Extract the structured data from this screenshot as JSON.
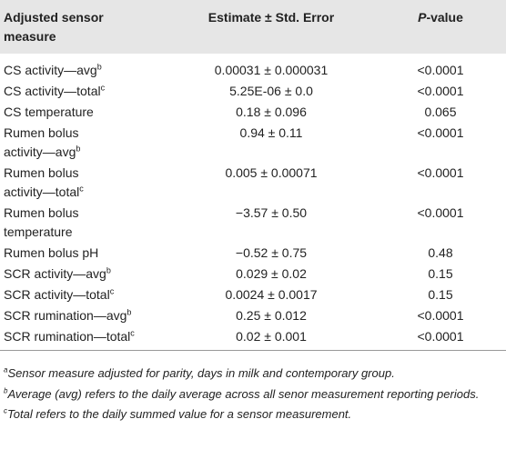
{
  "header": {
    "measure": [
      "Adjusted sensor",
      "measure"
    ],
    "estimate": "Estimate ± Std. Error",
    "p_value": [
      "P",
      "-value"
    ]
  },
  "table": {
    "rows": [
      {
        "measure": [
          "CS activity—avg"
        ],
        "sup": "b",
        "estimate": "0.00031 ± 0.000031",
        "p": "<0.0001"
      },
      {
        "measure": [
          "CS activity—total"
        ],
        "sup": "c",
        "estimate": "5.25E-06 ± 0.0",
        "p": "<0.0001"
      },
      {
        "measure": [
          "CS temperature"
        ],
        "estimate": "0.18 ± 0.096",
        "p": "0.065"
      },
      {
        "measure": [
          "Rumen bolus",
          "activity—avg"
        ],
        "sup": "b",
        "estimate": "0.94 ± 0.11",
        "p": "<0.0001"
      },
      {
        "measure": [
          "Rumen bolus",
          "activity—total"
        ],
        "sup": "c",
        "estimate": "0.005 ± 0.00071",
        "p": "<0.0001"
      },
      {
        "measure": [
          "Rumen bolus",
          "temperature"
        ],
        "estimate": "−3.57 ± 0.50",
        "p": "<0.0001"
      },
      {
        "measure": [
          "Rumen bolus pH"
        ],
        "estimate": "−0.52 ± 0.75",
        "p": "0.48"
      },
      {
        "measure": [
          "SCR activity—avg"
        ],
        "sup": "b",
        "estimate": "0.029 ± 0.02",
        "p": "0.15"
      },
      {
        "measure": [
          "SCR activity—total"
        ],
        "sup": "c",
        "estimate": "0.0024 ± 0.0017",
        "p": "0.15"
      },
      {
        "measure": [
          "SCR rumination—avg"
        ],
        "sup": "b",
        "estimate": "0.25 ± 0.012",
        "p": "<0.0001"
      },
      {
        "measure": [
          "SCR rumination—total"
        ],
        "sup": "c",
        "estimate": "0.02 ± 0.001",
        "p": "<0.0001"
      }
    ]
  },
  "footnotes": [
    {
      "mark": "a",
      "text": "Sensor measure adjusted for parity, days in milk and contemporary group."
    },
    {
      "mark": "b",
      "text": "Average (avg) refers to the daily average across all senor measurement reporting periods."
    },
    {
      "mark": "c",
      "text": "Total refers to the daily summed value for a sensor measurement."
    }
  ]
}
